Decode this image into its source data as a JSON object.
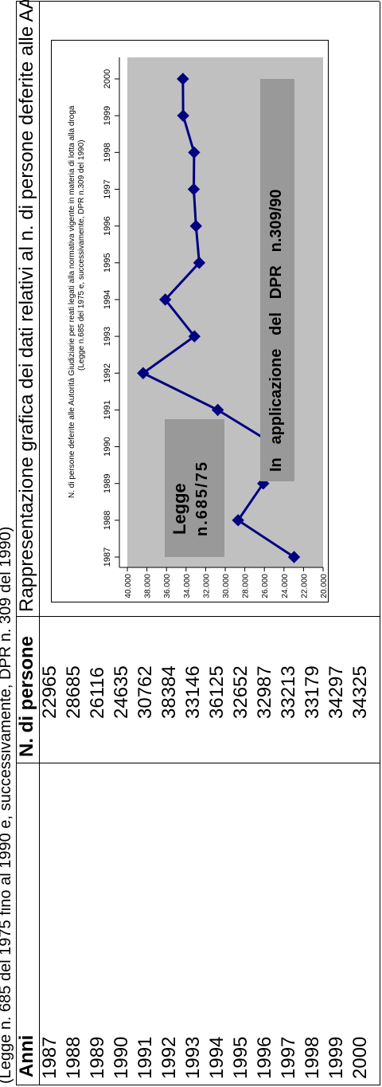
{
  "top_caption": "(Legge n. 685 del 1975 fino al 1990 e, successivamente, DPR n. 309 del 1990)",
  "table": {
    "col_years": "Anni",
    "col_persons": "N. di persone",
    "rows": [
      [
        "1987",
        "22965"
      ],
      [
        "1988",
        "28685"
      ],
      [
        "1989",
        "26116"
      ],
      [
        "1990",
        "24635"
      ],
      [
        "1991",
        "30762"
      ],
      [
        "1992",
        "38384"
      ],
      [
        "1993",
        "33146"
      ],
      [
        "1994",
        "36125"
      ],
      [
        "1995",
        "32652"
      ],
      [
        "1996",
        "32987"
      ],
      [
        "1997",
        "33213"
      ],
      [
        "1998",
        "33179"
      ],
      [
        "1999",
        "34297"
      ],
      [
        "2000",
        "34325"
      ]
    ]
  },
  "chart_header": "Rappresentazione grafica dei dati relativi al n. di persone deferite alle AA.GG.",
  "chart_note": {
    "line1": "N. di persone deferite alle Autorità Giudiziarie per reati legati alla normativa vigente in materia di lotta alla droga",
    "line2": "(Legge n.685 del 1975 e, successivamente,  DPR n.309 del 1990)"
  },
  "legend_left": {
    "line1": "Legge",
    "line2": "n.685/75"
  },
  "legend_right": "In   applicazione   del   DPR   n.309/90",
  "chart_data": {
    "type": "line",
    "x": [
      "1987",
      "1988",
      "1989",
      "1990",
      "1991",
      "1992",
      "1993",
      "1994",
      "1995",
      "1996",
      "1997",
      "1998",
      "1999",
      "2000"
    ],
    "values": [
      22965,
      28685,
      26116,
      24635,
      30762,
      38384,
      33146,
      36125,
      32652,
      32987,
      33213,
      33179,
      34297,
      34325
    ],
    "ylim": [
      20000,
      40000
    ],
    "y_ticks": [
      "20.000",
      "22.000",
      "24.000",
      "26.000",
      "28.000",
      "30.000",
      "32.000",
      "34.000",
      "36.000",
      "38.000",
      "40.000"
    ],
    "grid": false,
    "colors": {
      "line": "#000080",
      "marker": "#000080",
      "plot_bg": "#c0c0c0",
      "legend_bg": "#999999"
    }
  }
}
